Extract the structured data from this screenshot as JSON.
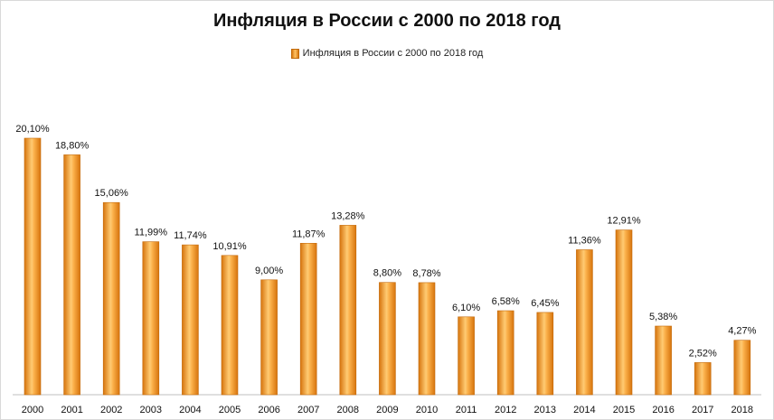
{
  "chart_data": {
    "type": "bar",
    "title": "Инфляция в России с 2000 по 2018 год",
    "legend": "top",
    "grid": false,
    "ylim": [
      0,
      21
    ],
    "categories": [
      "2000",
      "2001",
      "2002",
      "2003",
      "2004",
      "2005",
      "2006",
      "2007",
      "2008",
      "2009",
      "2010",
      "2011",
      "2012",
      "2013",
      "2014",
      "2015",
      "2016",
      "2017",
      "2018"
    ],
    "series": [
      {
        "name": "Инфляция  в России с 2000 по 2018 год",
        "values": [
          20.1,
          18.8,
          15.06,
          11.99,
          11.74,
          10.91,
          9.0,
          11.87,
          13.28,
          8.8,
          8.78,
          6.1,
          6.58,
          6.45,
          11.36,
          12.91,
          5.38,
          2.52,
          4.27
        ],
        "labels": [
          "20,10%",
          "18,80%",
          "15,06%",
          "11,99%",
          "11,74%",
          "10,91%",
          "9,00%",
          "11,87%",
          "13,28%",
          "8,80%",
          "8,78%",
          "6,10%",
          "6,58%",
          "6,45%",
          "11,36%",
          "12,91%",
          "5,38%",
          "2,52%",
          "4,27%"
        ],
        "color": "#f59a23"
      }
    ]
  }
}
